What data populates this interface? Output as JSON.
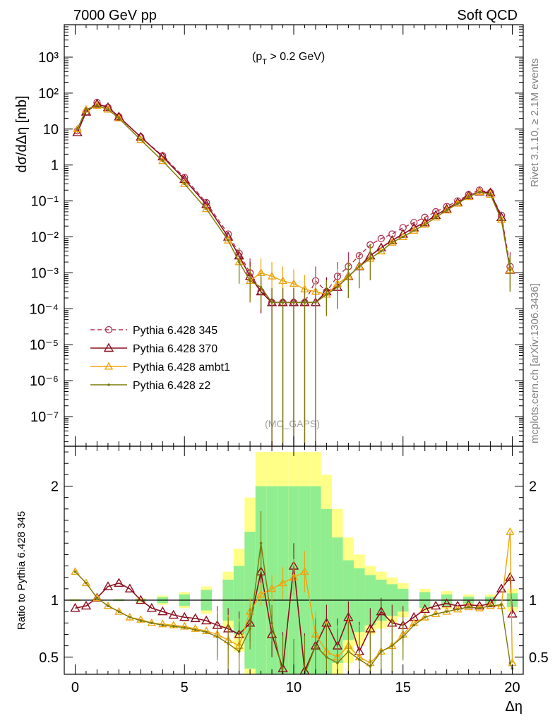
{
  "header": {
    "left": "7000 GeV pp",
    "right": "Soft QCD",
    "cut": "(p",
    "cut_sub": "T",
    "cut_rest": " > 0.2 GeV)",
    "analysis": "(MC_GAPS)"
  },
  "side": {
    "rivet": "Rivet 3.1.10, ≥ 2.1M events",
    "mcplots": "mcplots.cern.ch [arXiv:1306.3436]"
  },
  "colors": {
    "p345": "#b03050",
    "p370": "#8b0e1e",
    "ambt1": "#f0a30a",
    "z2": "#7a7a0c",
    "band_outer": "#ffff88",
    "band_inner": "#90ee90"
  },
  "chart_data": [
    {
      "type": "line",
      "ylabel": "dσ/dΔη [mb]",
      "yscale": "log",
      "xlim": [
        -0.5,
        20.5
      ],
      "ylim": [
        1.5e-08,
        8000
      ],
      "y_ticks": [
        "10⁻⁷",
        "10⁻⁶",
        "10⁻⁵",
        "10⁻⁴",
        "10⁻³",
        "10⁻²",
        "10⁻¹",
        "1",
        "10",
        "10²",
        "10³"
      ],
      "legend_position": "lower-left",
      "series": [
        {
          "name": "Pythia 6.428 345",
          "style": "dashed-circle",
          "x": [
            0.1,
            0.5,
            1.0,
            1.5,
            2,
            3,
            4,
            5,
            6,
            7,
            7.5,
            8,
            8.5,
            9,
            9.5,
            10,
            10.5,
            11,
            11.5,
            12,
            12.5,
            13,
            13.5,
            14,
            14.5,
            15,
            15.5,
            16,
            16.5,
            17,
            17.5,
            18,
            18.5,
            19,
            19.5,
            19.9
          ],
          "y": [
            9,
            30,
            55,
            40,
            22,
            6,
            1.8,
            0.45,
            0.09,
            0.012,
            0.0035,
            0.001,
            0.0003,
            0.00015,
            0.00015,
            0.00015,
            0.00015,
            0.0006,
            0.0003,
            0.0008,
            0.0015,
            0.003,
            0.006,
            0.009,
            0.012,
            0.018,
            0.025,
            0.035,
            0.05,
            0.07,
            0.1,
            0.15,
            0.2,
            0.17,
            0.04,
            0.0015
          ]
        },
        {
          "name": "Pythia 6.428 370",
          "style": "solid-triangle",
          "x": [
            0.1,
            0.5,
            1.0,
            1.5,
            2,
            3,
            4,
            5,
            6,
            7,
            7.5,
            8,
            8.5,
            9,
            9.5,
            10,
            10.5,
            11,
            11.5,
            12,
            12.5,
            13,
            13.5,
            14,
            14.5,
            15,
            15.5,
            16,
            16.5,
            17,
            17.5,
            18,
            18.5,
            19,
            19.5,
            19.9
          ],
          "y": [
            8,
            30,
            50,
            40,
            22,
            6,
            1.7,
            0.4,
            0.08,
            0.01,
            0.003,
            0.0008,
            0.0003,
            0.00015,
            0.00015,
            0.00015,
            0.00015,
            0.00015,
            0.0003,
            0.0004,
            0.0008,
            0.0015,
            0.003,
            0.005,
            0.008,
            0.012,
            0.018,
            0.025,
            0.04,
            0.06,
            0.09,
            0.14,
            0.18,
            0.17,
            0.035,
            0.0012
          ]
        },
        {
          "name": "Pythia 6.428 ambt1",
          "style": "solid-triangle-small",
          "x": [
            0.1,
            0.5,
            1.0,
            1.5,
            2,
            3,
            4,
            5,
            6,
            7,
            7.5,
            8,
            8.5,
            9,
            9.5,
            10,
            10.5,
            11,
            11.5,
            12,
            12.5,
            13,
            13.5,
            14,
            14.5,
            15,
            15.5,
            16,
            16.5,
            17,
            17.5,
            18,
            18.5,
            19,
            19.5,
            19.9
          ],
          "y": [
            10,
            35,
            45,
            35,
            20,
            5,
            1.3,
            0.3,
            0.06,
            0.008,
            0.002,
            0.0006,
            0.001,
            0.0008,
            0.0006,
            0.0005,
            0.00035,
            0.0003,
            0.00025,
            0.0005,
            0.0008,
            0.0015,
            0.0025,
            0.004,
            0.007,
            0.01,
            0.015,
            0.022,
            0.035,
            0.055,
            0.085,
            0.13,
            0.18,
            0.15,
            0.03,
            0.0012
          ]
        },
        {
          "name": "Pythia 6.428 z2",
          "style": "solid-dot",
          "x": [
            0.1,
            0.5,
            1.0,
            1.5,
            2,
            3,
            4,
            5,
            6,
            7,
            7.5,
            8,
            8.5,
            9,
            9.5,
            10,
            10.5,
            11,
            11.5,
            12,
            12.5,
            13,
            13.5,
            14,
            14.5,
            15,
            15.5,
            16,
            16.5,
            17,
            17.5,
            18,
            18.5,
            19,
            19.5,
            19.9
          ],
          "y": [
            10,
            35,
            45,
            35,
            20,
            5,
            1.3,
            0.3,
            0.06,
            0.008,
            0.002,
            0.0006,
            0.0004,
            0.00015,
            0.00015,
            0.00015,
            0.00015,
            0.00015,
            0.00025,
            0.0004,
            0.0008,
            0.0015,
            0.0025,
            0.004,
            0.007,
            0.01,
            0.015,
            0.022,
            0.035,
            0.055,
            0.085,
            0.13,
            0.18,
            0.15,
            0.03,
            0.0012
          ]
        }
      ]
    },
    {
      "type": "line",
      "xlabel": "Δη",
      "ylabel": "Ratio to Pythia 6.428 345",
      "xlim": [
        -0.5,
        20.5
      ],
      "ylim": [
        0.35,
        2.35
      ],
      "x_ticks": [
        "0",
        "5",
        "10",
        "15",
        "20"
      ],
      "y_ticks": [
        "0.5",
        "1",
        "2"
      ],
      "reference_line": 1,
      "bands": {
        "x": [
          0,
          1,
          2,
          3,
          4,
          5,
          6,
          7,
          7.5,
          8,
          8.5,
          9,
          9.5,
          10,
          10.5,
          11,
          11.5,
          12,
          12.5,
          13,
          13.5,
          14,
          14.5,
          15,
          16,
          17,
          18,
          19,
          20
        ],
        "outer": [
          0.01,
          0.01,
          0.01,
          0.02,
          0.04,
          0.07,
          0.12,
          0.25,
          0.45,
          0.9,
          1.3,
          1.3,
          1.3,
          1.3,
          1.3,
          1.3,
          1.1,
          0.8,
          0.55,
          0.4,
          0.3,
          0.25,
          0.2,
          0.15,
          0.1,
          0.08,
          0.05,
          0.05,
          0.1
        ],
        "inner": [
          0.005,
          0.005,
          0.007,
          0.012,
          0.025,
          0.05,
          0.09,
          0.18,
          0.3,
          0.6,
          1.0,
          1.0,
          1.0,
          1.0,
          1.0,
          1.0,
          0.8,
          0.55,
          0.35,
          0.28,
          0.22,
          0.18,
          0.14,
          0.1,
          0.07,
          0.05,
          0.03,
          0.03,
          0.06
        ]
      },
      "series": [
        {
          "name": "Pythia 6.428 370",
          "x": [
            0,
            0.5,
            1,
            1.5,
            2,
            2.5,
            3,
            3.5,
            4,
            4.5,
            5,
            5.5,
            6,
            6.5,
            7,
            7.5,
            8,
            8.5,
            9,
            9.5,
            10,
            10.5,
            11,
            11.5,
            12,
            12.5,
            13,
            13.5,
            14,
            14.5,
            15,
            15.5,
            16,
            16.5,
            17,
            17.5,
            18,
            18.5,
            19,
            19.5,
            19.9,
            20
          ],
          "y": [
            0.93,
            0.95,
            1.02,
            1.12,
            1.15,
            1.1,
            1.0,
            0.93,
            0.9,
            0.87,
            0.85,
            0.84,
            0.82,
            0.78,
            0.75,
            0.7,
            0.8,
            1.25,
            0.7,
            0.4,
            1.3,
            0.38,
            0.6,
            0.8,
            0.6,
            0.85,
            0.55,
            0.75,
            0.9,
            0.8,
            0.78,
            0.85,
            0.92,
            0.95,
            0.97,
            0.95,
            0.96,
            0.95,
            0.97,
            1.1,
            1.2,
            0.88
          ]
        },
        {
          "name": "Pythia 6.428 ambt1",
          "x": [
            0,
            0.5,
            1,
            1.5,
            2,
            2.5,
            3,
            3.5,
            4,
            4.5,
            5,
            5.5,
            6,
            6.5,
            7,
            7.5,
            8,
            8.5,
            9,
            9.5,
            10,
            10.5,
            11,
            11.5,
            12,
            12.5,
            13,
            13.5,
            14,
            14.5,
            15,
            15.5,
            16,
            16.5,
            17,
            17.5,
            18,
            18.5,
            19,
            19.5,
            19.9,
            20
          ],
          "y": [
            1.25,
            1.15,
            1.02,
            0.95,
            0.9,
            0.85,
            0.83,
            0.8,
            0.79,
            0.78,
            0.77,
            0.75,
            0.73,
            0.7,
            0.65,
            0.6,
            0.9,
            1.05,
            1.1,
            1.15,
            1.2,
            1.25,
            0.7,
            0.55,
            0.5,
            0.6,
            0.5,
            0.45,
            0.55,
            0.6,
            0.7,
            0.8,
            0.85,
            0.88,
            0.9,
            0.92,
            0.94,
            0.93,
            0.95,
            0.95,
            1.6,
            0.45
          ]
        },
        {
          "name": "Pythia 6.428 z2",
          "x": [
            0,
            0.5,
            1,
            1.5,
            2,
            2.5,
            3,
            3.5,
            4,
            4.5,
            5,
            5.5,
            6,
            6.5,
            7,
            7.5,
            8,
            8.5,
            9,
            9.5,
            10,
            10.5,
            11,
            11.5,
            12,
            12.5,
            13,
            13.5,
            14,
            14.5,
            15,
            15.5,
            16,
            16.5,
            17,
            17.5,
            18,
            18.5,
            19,
            19.5,
            19.9,
            20
          ],
          "y": [
            1.25,
            1.15,
            1.02,
            0.95,
            0.9,
            0.85,
            0.82,
            0.8,
            0.78,
            0.77,
            0.76,
            0.74,
            0.72,
            0.68,
            0.62,
            0.55,
            0.75,
            1.5,
            0.8,
            0.35,
            0.3,
            0.35,
            0.6,
            0.5,
            0.45,
            0.55,
            0.48,
            0.42,
            0.55,
            0.6,
            0.68,
            0.78,
            0.85,
            0.88,
            0.9,
            0.92,
            0.94,
            0.93,
            0.95,
            0.96,
            0.45,
            0.4
          ]
        }
      ]
    }
  ]
}
